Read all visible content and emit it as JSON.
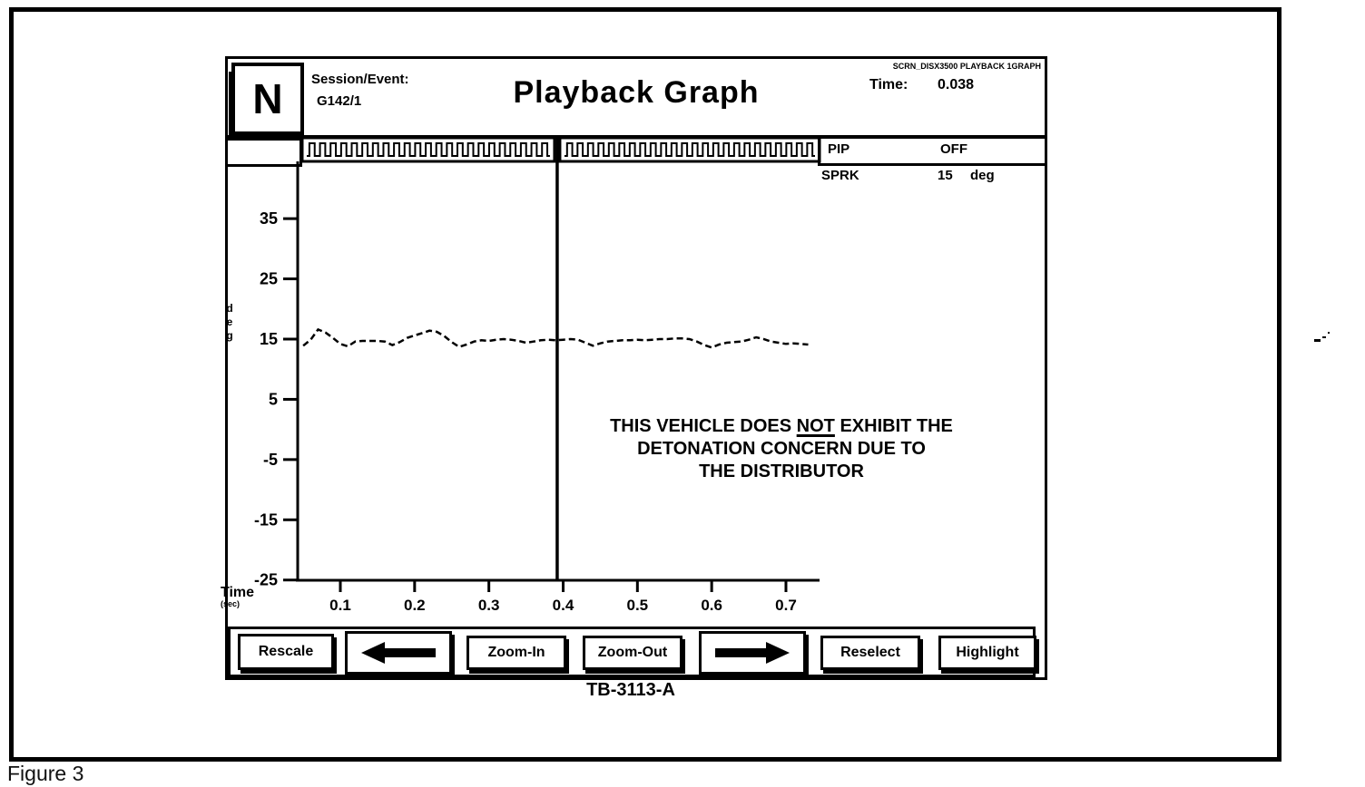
{
  "figure": {
    "label": "Figure 3",
    "caption": "TB-3113-A"
  },
  "header": {
    "logo": "N",
    "session_label": "Session/Event:",
    "session_value": "G142/1",
    "title": "Playback Graph",
    "screen_id": "SCRN_DISX3500 PLAYBACK 1GRAPH",
    "time_label": "Time:",
    "time_value": "0.038"
  },
  "signals": {
    "pip_label": "PIP",
    "pip_value": "OFF",
    "sprk_label": "SPRK",
    "sprk_value": "15",
    "sprk_unit": "deg"
  },
  "axis_corner": {
    "label": "Time",
    "unit": "(sec)"
  },
  "annotation": {
    "line1_pre": "THIS VEHICLE DOES ",
    "line1_underlined": "NOT",
    "line1_post": " EXHIBIT THE",
    "line2": "DETONATION CONCERN DUE TO",
    "line3": "THE DISTRIBUTOR"
  },
  "buttons": [
    {
      "id": "rescale",
      "type": "text",
      "label": "Rescale"
    },
    {
      "id": "pan-left",
      "type": "arrow-left",
      "label": "left-arrow"
    },
    {
      "id": "zoom-in",
      "type": "text",
      "label": "Zoom-In"
    },
    {
      "id": "zoom-out",
      "type": "text",
      "label": "Zoom-Out"
    },
    {
      "id": "pan-right",
      "type": "arrow-right",
      "label": "right-arrow"
    },
    {
      "id": "reselect",
      "type": "text",
      "label": "Reselect"
    },
    {
      "id": "highlight",
      "type": "text",
      "label": "Highlight"
    }
  ],
  "chart_data": {
    "type": "line",
    "title": "Playback Graph",
    "xlabel": "Time (sec)",
    "ylabel": "deg",
    "xlim": [
      0.043,
      0.745
    ],
    "ylim": [
      -26,
      44
    ],
    "x_ticks": [
      0.1,
      0.2,
      0.3,
      0.4,
      0.5,
      0.6,
      0.7
    ],
    "y_ticks": [
      35,
      25,
      15,
      5,
      -5,
      -15,
      -25
    ],
    "grid": false,
    "cursor_x": 0.392,
    "square_wave": {
      "name": "PIP",
      "state": "OFF",
      "segments": [
        {
          "pulses": 23
        },
        {
          "pulses": 24
        }
      ]
    },
    "series": [
      {
        "name": "SPRK",
        "unit": "deg",
        "style": "dashed",
        "x": [
          0.05,
          0.06,
          0.07,
          0.08,
          0.09,
          0.1,
          0.11,
          0.12,
          0.13,
          0.14,
          0.15,
          0.16,
          0.17,
          0.18,
          0.19,
          0.2,
          0.21,
          0.22,
          0.23,
          0.24,
          0.25,
          0.26,
          0.27,
          0.28,
          0.29,
          0.3,
          0.31,
          0.32,
          0.33,
          0.34,
          0.35,
          0.36,
          0.37,
          0.38,
          0.39,
          0.4,
          0.41,
          0.42,
          0.43,
          0.44,
          0.45,
          0.46,
          0.47,
          0.48,
          0.49,
          0.5,
          0.51,
          0.52,
          0.53,
          0.54,
          0.55,
          0.56,
          0.57,
          0.58,
          0.59,
          0.6,
          0.61,
          0.62,
          0.63,
          0.64,
          0.65,
          0.66,
          0.67,
          0.68,
          0.69,
          0.7,
          0.71,
          0.72,
          0.73
        ],
        "y": [
          13.9,
          14.9,
          16.6,
          16.1,
          15.2,
          14.2,
          13.8,
          14.6,
          14.7,
          14.7,
          14.7,
          14.6,
          14.0,
          14.5,
          15.2,
          15.6,
          16.0,
          16.4,
          16.2,
          15.5,
          14.5,
          13.7,
          14.1,
          14.6,
          14.8,
          14.7,
          14.9,
          15.0,
          14.9,
          14.7,
          14.4,
          14.6,
          14.8,
          14.9,
          14.8,
          14.9,
          15.0,
          14.9,
          14.4,
          13.9,
          14.3,
          14.6,
          14.7,
          14.8,
          14.8,
          14.9,
          14.8,
          14.9,
          15.0,
          15.0,
          15.1,
          15.1,
          15.0,
          14.6,
          14.0,
          13.6,
          14.1,
          14.4,
          14.5,
          14.6,
          14.9,
          15.3,
          15.0,
          14.6,
          14.4,
          14.2,
          14.3,
          14.2,
          14.1
        ]
      }
    ]
  },
  "colors": {
    "ink": "#000000",
    "paper": "#ffffff"
  }
}
